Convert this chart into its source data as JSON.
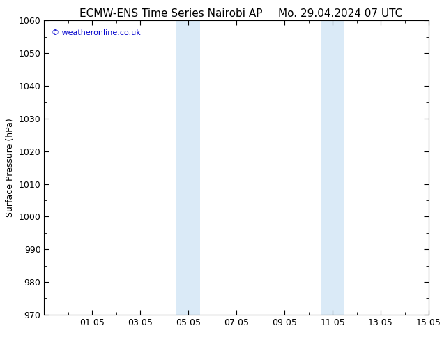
{
  "title_left": "ECMW-ENS Time Series Nairobi AP",
  "title_right": "Mo. 29.04.2024 07 UTC",
  "ylabel": "Surface Pressure (hPa)",
  "ylim": [
    970,
    1060
  ],
  "yticks": [
    970,
    980,
    990,
    1000,
    1010,
    1020,
    1030,
    1040,
    1050,
    1060
  ],
  "xlim_start": 29.0,
  "xlim_end": 45.0,
  "xtick_positions": [
    31,
    33,
    35,
    37,
    39,
    41,
    43,
    45
  ],
  "xtick_labels": [
    "01.05",
    "03.05",
    "05.05",
    "07.05",
    "09.05",
    "11.05",
    "13.05",
    "15.05"
  ],
  "shaded_bands": [
    {
      "x_start": 34.5,
      "x_end": 35.0
    },
    {
      "x_start": 35.0,
      "x_end": 35.5
    },
    {
      "x_start": 40.5,
      "x_end": 41.0
    },
    {
      "x_start": 41.0,
      "x_end": 41.5
    }
  ],
  "shade_color": "#daeaf7",
  "background_color": "#ffffff",
  "border_color": "#000000",
  "watermark_text": "© weatheronline.co.uk",
  "watermark_color": "#0000cc",
  "title_fontsize": 11,
  "axis_label_fontsize": 9,
  "tick_fontsize": 9
}
